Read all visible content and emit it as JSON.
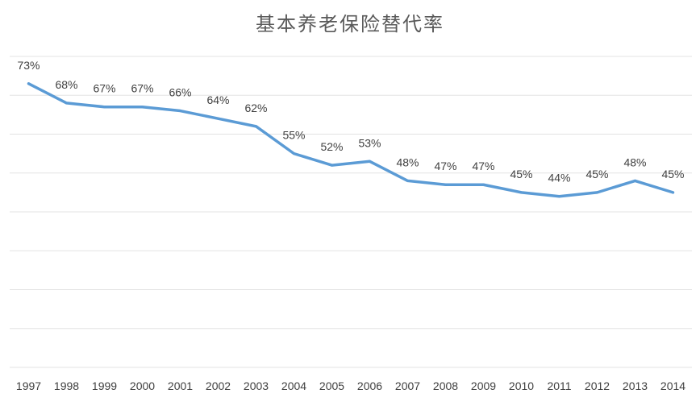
{
  "chart_data": {
    "type": "line",
    "title": "基本养老保险替代率",
    "xlabel": "",
    "ylabel": "",
    "grid": true,
    "ylim": [
      0,
      80
    ],
    "categories": [
      "1997",
      "1998",
      "1999",
      "2000",
      "2001",
      "2002",
      "2003",
      "2004",
      "2005",
      "2006",
      "2007",
      "2008",
      "2009",
      "2010",
      "2011",
      "2012",
      "2013",
      "2014"
    ],
    "series": [
      {
        "name": "基本养老保险替代率",
        "color": "#5b9bd5",
        "values": [
          73,
          68,
          67,
          67,
          66,
          64,
          62,
          55,
          52,
          53,
          48,
          47,
          47,
          45,
          44,
          45,
          48,
          45
        ],
        "labels": [
          "73%",
          "68%",
          "67%",
          "67%",
          "66%",
          "64%",
          "62%",
          "55%",
          "52%",
          "53%",
          "48%",
          "47%",
          "47%",
          "45%",
          "44%",
          "45%",
          "48%",
          "45%"
        ]
      }
    ]
  }
}
